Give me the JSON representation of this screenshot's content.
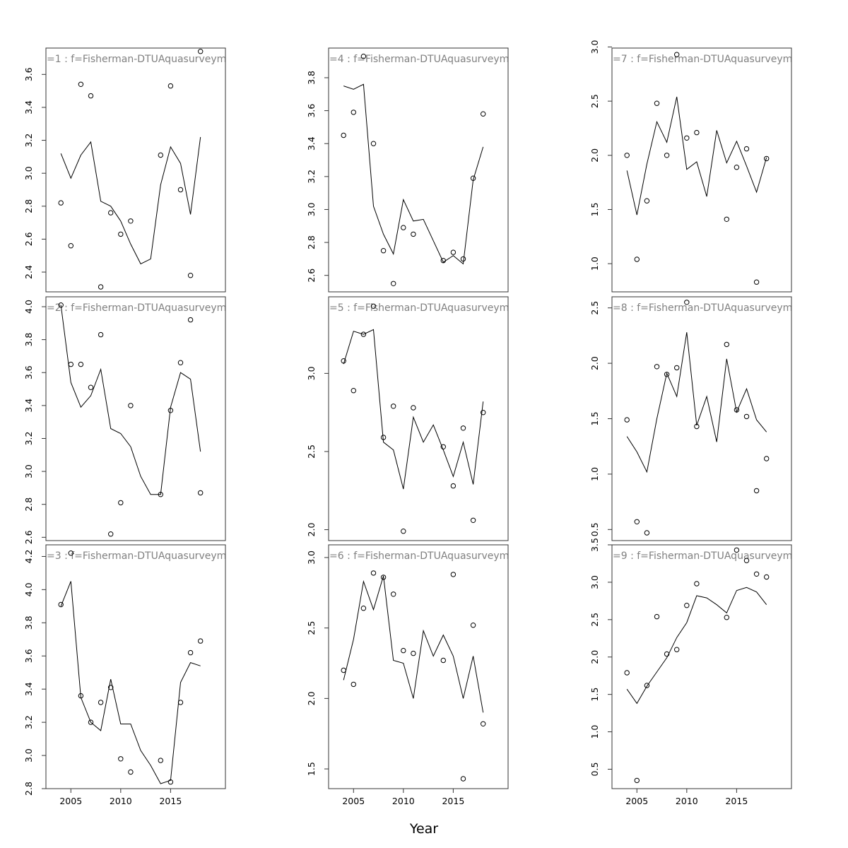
{
  "chart_data": {
    "type": "scatter",
    "xlabel": "Year",
    "x_ticks": [
      2005,
      2010,
      2015
    ],
    "xlim": [
      2002.5,
      2020.5
    ],
    "panels": [
      {
        "strip": "=1 : f=Fisherman-DTUAquasurveyme",
        "ylim": [
          2.28,
          3.76
        ],
        "y_ticks": [
          2.4,
          2.6,
          2.8,
          3.0,
          3.2,
          3.4,
          3.6
        ],
        "y_tick_labels": [
          "2.4",
          "2.6",
          "2.8",
          "3.0",
          "3.2",
          "3.4",
          "3.6"
        ],
        "points": [
          [
            2004,
            2.82
          ],
          [
            2005,
            2.56
          ],
          [
            2006,
            3.54
          ],
          [
            2007,
            3.47
          ],
          [
            2008,
            2.31
          ],
          [
            2009,
            2.76
          ],
          [
            2010,
            2.63
          ],
          [
            2011,
            2.71
          ],
          [
            2014,
            3.11
          ],
          [
            2015,
            3.53
          ],
          [
            2016,
            2.9
          ],
          [
            2017,
            2.38
          ],
          [
            2018,
            3.74
          ]
        ],
        "line": [
          [
            2004,
            3.12
          ],
          [
            2005,
            2.97
          ],
          [
            2006,
            3.11
          ],
          [
            2007,
            3.19
          ],
          [
            2008,
            2.83
          ],
          [
            2009,
            2.8
          ],
          [
            2010,
            2.71
          ],
          [
            2011,
            2.57
          ],
          [
            2012,
            2.45
          ],
          [
            2013,
            2.48
          ],
          [
            2014,
            2.93
          ],
          [
            2015,
            3.16
          ],
          [
            2016,
            3.06
          ],
          [
            2017,
            2.75
          ],
          [
            2018,
            3.22
          ]
        ]
      },
      {
        "strip": "=2 : f=Fisherman-DTUAquasurveyme",
        "ylim": [
          2.58,
          4.06
        ],
        "y_ticks": [
          2.6,
          2.8,
          3.0,
          3.2,
          3.4,
          3.6,
          3.8,
          4.0
        ],
        "y_tick_labels": [
          "2.6",
          "2.8",
          "3.0",
          "3.2",
          "3.4",
          "3.6",
          "3.8",
          "4.0"
        ],
        "points": [
          [
            2004,
            4.01
          ],
          [
            2005,
            3.65
          ],
          [
            2006,
            3.65
          ],
          [
            2007,
            3.51
          ],
          [
            2008,
            3.83
          ],
          [
            2009,
            2.62
          ],
          [
            2010,
            2.81
          ],
          [
            2011,
            3.4
          ],
          [
            2014,
            2.86
          ],
          [
            2015,
            3.37
          ],
          [
            2016,
            3.66
          ],
          [
            2017,
            3.92
          ],
          [
            2018,
            2.87
          ]
        ],
        "line": [
          [
            2004,
            4.01
          ],
          [
            2005,
            3.54
          ],
          [
            2006,
            3.39
          ],
          [
            2007,
            3.46
          ],
          [
            2008,
            3.62
          ],
          [
            2009,
            3.26
          ],
          [
            2010,
            3.23
          ],
          [
            2011,
            3.15
          ],
          [
            2012,
            2.97
          ],
          [
            2013,
            2.86
          ],
          [
            2014,
            2.86
          ],
          [
            2015,
            3.39
          ],
          [
            2016,
            3.6
          ],
          [
            2017,
            3.56
          ],
          [
            2018,
            3.12
          ]
        ]
      },
      {
        "strip": "=3 : f=Fisherman-DTUAquasurveyme",
        "ylim": [
          2.8,
          4.27
        ],
        "y_ticks": [
          2.8,
          3.0,
          3.2,
          3.4,
          3.6,
          3.8,
          4.0,
          4.2
        ],
        "y_tick_labels": [
          "2.8",
          "3.0",
          "3.2",
          "3.4",
          "3.6",
          "3.8",
          "4.0",
          "4.2"
        ],
        "points": [
          [
            2004,
            3.91
          ],
          [
            2005,
            4.22
          ],
          [
            2006,
            3.36
          ],
          [
            2007,
            3.2
          ],
          [
            2008,
            3.32
          ],
          [
            2009,
            3.41
          ],
          [
            2010,
            2.98
          ],
          [
            2011,
            2.9
          ],
          [
            2014,
            2.97
          ],
          [
            2015,
            2.84
          ],
          [
            2016,
            3.32
          ],
          [
            2017,
            3.62
          ],
          [
            2018,
            3.69
          ]
        ],
        "line": [
          [
            2004,
            3.9
          ],
          [
            2005,
            4.05
          ],
          [
            2006,
            3.35
          ],
          [
            2007,
            3.2
          ],
          [
            2008,
            3.15
          ],
          [
            2009,
            3.46
          ],
          [
            2010,
            3.19
          ],
          [
            2011,
            3.19
          ],
          [
            2012,
            3.03
          ],
          [
            2013,
            2.94
          ],
          [
            2014,
            2.83
          ],
          [
            2015,
            2.85
          ],
          [
            2016,
            3.44
          ],
          [
            2017,
            3.56
          ],
          [
            2018,
            3.54
          ]
        ]
      },
      {
        "strip": "=4 : f=Fisherman-DTUAquasurveyme",
        "ylim": [
          2.5,
          3.98
        ],
        "y_ticks": [
          2.6,
          2.8,
          3.0,
          3.2,
          3.4,
          3.6,
          3.8
        ],
        "y_tick_labels": [
          "2.6",
          "2.8",
          "3.0",
          "3.2",
          "3.4",
          "3.6",
          "3.8"
        ],
        "points": [
          [
            2004,
            3.45
          ],
          [
            2005,
            3.59
          ],
          [
            2006,
            3.93
          ],
          [
            2007,
            3.4
          ],
          [
            2008,
            2.75
          ],
          [
            2009,
            2.55
          ],
          [
            2010,
            2.89
          ],
          [
            2011,
            2.85
          ],
          [
            2014,
            2.69
          ],
          [
            2015,
            2.74
          ],
          [
            2016,
            2.7
          ],
          [
            2017,
            3.19
          ],
          [
            2018,
            3.58
          ]
        ],
        "line": [
          [
            2004,
            3.75
          ],
          [
            2005,
            3.73
          ],
          [
            2006,
            3.76
          ],
          [
            2007,
            3.02
          ],
          [
            2008,
            2.85
          ],
          [
            2009,
            2.73
          ],
          [
            2010,
            3.06
          ],
          [
            2011,
            2.93
          ],
          [
            2012,
            2.94
          ],
          [
            2013,
            2.81
          ],
          [
            2014,
            2.68
          ],
          [
            2015,
            2.72
          ],
          [
            2016,
            2.67
          ],
          [
            2017,
            3.18
          ],
          [
            2018,
            3.38
          ]
        ]
      },
      {
        "strip": "=5 : f=Fisherman-DTUAquasurveyme",
        "ylim": [
          1.93,
          3.49
        ],
        "y_ticks": [
          2.0,
          2.5,
          3.0
        ],
        "y_tick_labels": [
          "2.0",
          "2.5",
          "3.0"
        ],
        "points": [
          [
            2004,
            3.08
          ],
          [
            2005,
            2.89
          ],
          [
            2006,
            3.25
          ],
          [
            2007,
            3.43
          ],
          [
            2008,
            2.59
          ],
          [
            2009,
            2.79
          ],
          [
            2010,
            1.99
          ],
          [
            2011,
            2.78
          ],
          [
            2014,
            2.53
          ],
          [
            2015,
            2.28
          ],
          [
            2016,
            2.65
          ],
          [
            2017,
            2.06
          ],
          [
            2018,
            2.75
          ]
        ],
        "line": [
          [
            2004,
            3.06
          ],
          [
            2005,
            3.27
          ],
          [
            2006,
            3.25
          ],
          [
            2007,
            3.28
          ],
          [
            2008,
            2.56
          ],
          [
            2009,
            2.51
          ],
          [
            2010,
            2.26
          ],
          [
            2011,
            2.72
          ],
          [
            2012,
            2.56
          ],
          [
            2013,
            2.67
          ],
          [
            2014,
            2.51
          ],
          [
            2015,
            2.34
          ],
          [
            2016,
            2.56
          ],
          [
            2017,
            2.29
          ],
          [
            2018,
            2.82
          ]
        ]
      },
      {
        "strip": "=6 : f=Fisherman-DTUAquasurveyme",
        "ylim": [
          1.36,
          3.09
        ],
        "y_ticks": [
          1.5,
          2.0,
          2.5,
          3.0
        ],
        "y_tick_labels": [
          "1.5",
          "2.0",
          "2.5",
          "3.0"
        ],
        "points": [
          [
            2004,
            2.2
          ],
          [
            2005,
            2.1
          ],
          [
            2006,
            2.64
          ],
          [
            2007,
            2.89
          ],
          [
            2008,
            2.86
          ],
          [
            2009,
            2.74
          ],
          [
            2010,
            2.34
          ],
          [
            2011,
            2.32
          ],
          [
            2014,
            2.27
          ],
          [
            2015,
            2.88
          ],
          [
            2016,
            1.43
          ],
          [
            2017,
            2.52
          ],
          [
            2018,
            1.82
          ]
        ],
        "line": [
          [
            2004,
            2.13
          ],
          [
            2005,
            2.42
          ],
          [
            2006,
            2.83
          ],
          [
            2007,
            2.63
          ],
          [
            2008,
            2.87
          ],
          [
            2009,
            2.27
          ],
          [
            2010,
            2.25
          ],
          [
            2011,
            2.0
          ],
          [
            2012,
            2.48
          ],
          [
            2013,
            2.3
          ],
          [
            2014,
            2.45
          ],
          [
            2015,
            2.3
          ],
          [
            2016,
            2.0
          ],
          [
            2017,
            2.3
          ],
          [
            2018,
            1.9
          ]
        ]
      },
      {
        "strip": "=7 : f=Fisherman-DTUAquasurveyme",
        "ylim": [
          0.74,
          2.99
        ],
        "y_ticks": [
          1.0,
          1.5,
          2.0,
          2.5,
          3.0
        ],
        "y_tick_labels": [
          "1.0",
          "1.5",
          "2.0",
          "2.5",
          "3.0"
        ],
        "points": [
          [
            2004,
            2.0
          ],
          [
            2005,
            1.04
          ],
          [
            2006,
            1.58
          ],
          [
            2007,
            2.48
          ],
          [
            2008,
            2.0
          ],
          [
            2009,
            2.93
          ],
          [
            2010,
            2.16
          ],
          [
            2011,
            2.21
          ],
          [
            2014,
            1.41
          ],
          [
            2015,
            1.89
          ],
          [
            2016,
            2.06
          ],
          [
            2017,
            0.83
          ],
          [
            2018,
            1.97
          ]
        ],
        "line": [
          [
            2004,
            1.86
          ],
          [
            2005,
            1.45
          ],
          [
            2006,
            1.92
          ],
          [
            2007,
            2.31
          ],
          [
            2008,
            2.12
          ],
          [
            2009,
            2.54
          ],
          [
            2010,
            1.87
          ],
          [
            2011,
            1.94
          ],
          [
            2012,
            1.62
          ],
          [
            2013,
            2.23
          ],
          [
            2014,
            1.93
          ],
          [
            2015,
            2.13
          ],
          [
            2016,
            1.9
          ],
          [
            2017,
            1.66
          ],
          [
            2018,
            1.98
          ]
        ]
      },
      {
        "strip": "=8 : f=Fisherman-DTUAquasurveyme",
        "ylim": [
          0.4,
          2.6
        ],
        "y_ticks": [
          0.5,
          1.0,
          1.5,
          2.0,
          2.5
        ],
        "y_tick_labels": [
          "0.5",
          "1.0",
          "1.5",
          "2.0",
          "2.5"
        ],
        "points": [
          [
            2004,
            1.49
          ],
          [
            2005,
            0.57
          ],
          [
            2006,
            0.47
          ],
          [
            2007,
            1.97
          ],
          [
            2008,
            1.9
          ],
          [
            2009,
            1.96
          ],
          [
            2010,
            2.55
          ],
          [
            2011,
            1.43
          ],
          [
            2014,
            2.17
          ],
          [
            2015,
            1.58
          ],
          [
            2016,
            1.52
          ],
          [
            2017,
            0.85
          ],
          [
            2018,
            1.14
          ]
        ],
        "line": [
          [
            2004,
            1.34
          ],
          [
            2005,
            1.2
          ],
          [
            2006,
            1.02
          ],
          [
            2007,
            1.5
          ],
          [
            2008,
            1.91
          ],
          [
            2009,
            1.7
          ],
          [
            2010,
            2.28
          ],
          [
            2011,
            1.44
          ],
          [
            2012,
            1.7
          ],
          [
            2013,
            1.29
          ],
          [
            2014,
            2.04
          ],
          [
            2015,
            1.56
          ],
          [
            2016,
            1.77
          ],
          [
            2017,
            1.49
          ],
          [
            2018,
            1.38
          ]
        ]
      },
      {
        "strip": "=9 : f=Fisherman-DTUAquasurveyme",
        "ylim": [
          0.24,
          3.5
        ],
        "y_ticks": [
          0.5,
          1.0,
          1.5,
          2.0,
          2.5,
          3.0,
          3.5
        ],
        "y_tick_labels": [
          "0.5",
          "1.0",
          "1.5",
          "2.0",
          "2.5",
          "3.0",
          "3.5"
        ],
        "points": [
          [
            2004,
            1.79
          ],
          [
            2005,
            0.35
          ],
          [
            2006,
            1.62
          ],
          [
            2007,
            2.54
          ],
          [
            2008,
            2.04
          ],
          [
            2009,
            2.1
          ],
          [
            2010,
            2.69
          ],
          [
            2011,
            2.98
          ],
          [
            2014,
            2.53
          ],
          [
            2015,
            3.43
          ],
          [
            2016,
            3.29
          ],
          [
            2017,
            3.11
          ],
          [
            2018,
            3.07
          ]
        ],
        "line": [
          [
            2004,
            1.57
          ],
          [
            2005,
            1.38
          ],
          [
            2006,
            1.61
          ],
          [
            2007,
            1.8
          ],
          [
            2008,
            1.99
          ],
          [
            2009,
            2.26
          ],
          [
            2010,
            2.46
          ],
          [
            2011,
            2.82
          ],
          [
            2012,
            2.79
          ],
          [
            2013,
            2.7
          ],
          [
            2014,
            2.59
          ],
          [
            2015,
            2.89
          ],
          [
            2016,
            2.93
          ],
          [
            2017,
            2.87
          ],
          [
            2018,
            2.7
          ]
        ]
      }
    ]
  }
}
